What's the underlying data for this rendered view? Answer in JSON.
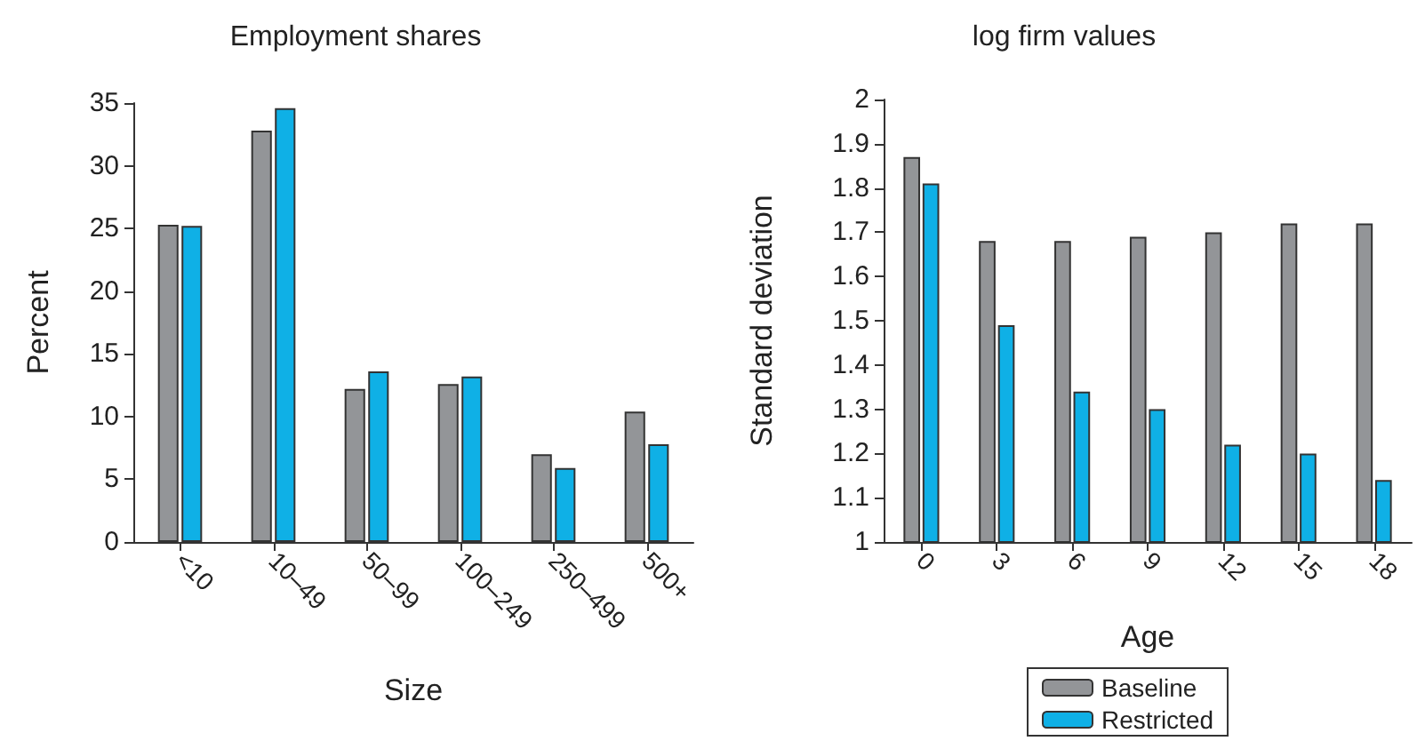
{
  "chart_data": [
    {
      "type": "bar",
      "title": "Employment shares",
      "xlabel": "Size",
      "ylabel": "Percent",
      "categories": [
        "<10",
        "10–49",
        "50–99",
        "100–249",
        "250–499",
        "500+"
      ],
      "series": [
        {
          "color": "#939598",
          "values": [
            25.3,
            32.8,
            12.2,
            12.6,
            7.0,
            10.4
          ]
        },
        {
          "color": "#0fb0e6",
          "values": [
            25.2,
            34.6,
            13.6,
            13.2,
            5.9,
            7.8
          ]
        }
      ],
      "ylim": [
        0,
        35
      ],
      "yticks": [
        0,
        5,
        10,
        15,
        20,
        25,
        30,
        35
      ],
      "grid": false,
      "legend": false
    },
    {
      "type": "bar",
      "title": "log firm values",
      "xlabel": "Age",
      "ylabel": "Standard deviation",
      "categories": [
        "0",
        "3",
        "6",
        "9",
        "12",
        "15",
        "18"
      ],
      "series": [
        {
          "name": "Baseline",
          "color": "#939598",
          "values": [
            1.87,
            1.68,
            1.68,
            1.69,
            1.7,
            1.72,
            1.72
          ]
        },
        {
          "name": "Restricted",
          "color": "#0fb0e6",
          "values": [
            1.81,
            1.49,
            1.34,
            1.3,
            1.22,
            1.2,
            1.14
          ]
        }
      ],
      "ylim": [
        1,
        2
      ],
      "yticks": [
        1,
        1.1,
        1.2,
        1.3,
        1.4,
        1.5,
        1.6,
        1.7,
        1.8,
        1.9,
        2
      ],
      "grid": false,
      "legend": "bottom"
    }
  ]
}
